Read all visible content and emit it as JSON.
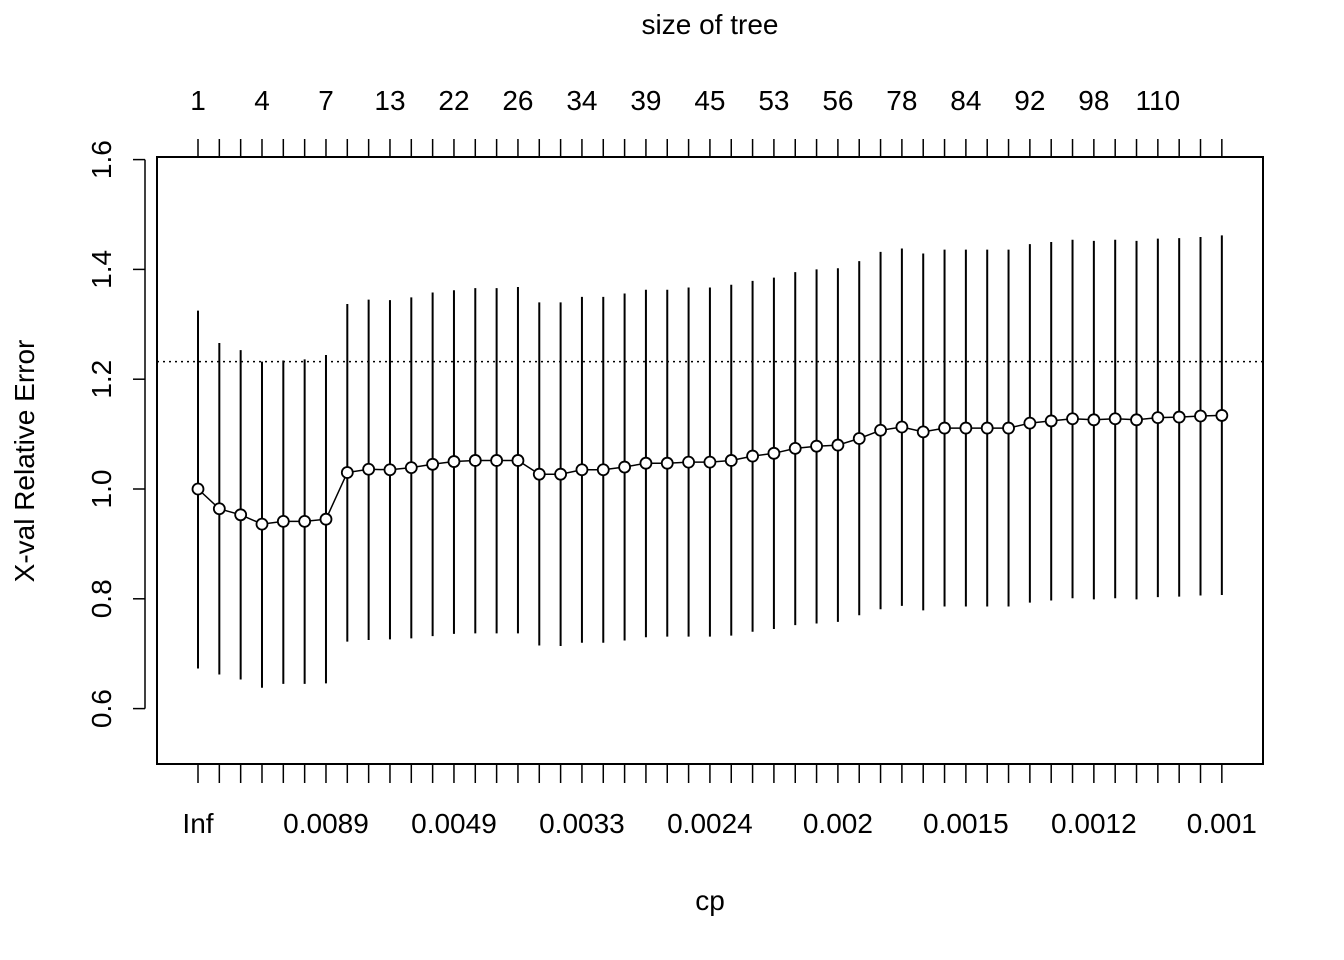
{
  "chart_data": {
    "type": "line",
    "title": "size of tree",
    "xlabel": "cp",
    "ylabel": "X-val Relative Error",
    "ylim": [
      0.5,
      1.6
    ],
    "y_ticks": [
      "0.6",
      "0.8",
      "1.0",
      "1.2",
      "1.4",
      "1.6"
    ],
    "bottom_tick_labels": [
      "Inf",
      "0.0089",
      "0.0049",
      "0.0033",
      "0.0024",
      "0.002",
      "0.0015",
      "0.0012",
      "0.001"
    ],
    "top_tick_labels": [
      "1",
      "4",
      "7",
      "13",
      "22",
      "26",
      "34",
      "39",
      "45",
      "53",
      "56",
      "78",
      "84",
      "92",
      "98",
      "110"
    ],
    "reference_line": 1.232,
    "grid": false,
    "series": [
      {
        "values": [
          1.0,
          0.964,
          0.953,
          0.936,
          0.941,
          0.941,
          0.945,
          1.03,
          1.036,
          1.035,
          1.039,
          1.045,
          1.05,
          1.052,
          1.052,
          1.052,
          1.027,
          1.027,
          1.035,
          1.035,
          1.04,
          1.047,
          1.047,
          1.049,
          1.049,
          1.052,
          1.06,
          1.065,
          1.074,
          1.078,
          1.08,
          1.092,
          1.107,
          1.113,
          1.104,
          1.111,
          1.111,
          1.111,
          1.111,
          1.12,
          1.124,
          1.128,
          1.126,
          1.128,
          1.126,
          1.13,
          1.131,
          1.133,
          1.134
        ],
        "upper": [
          1.325,
          1.266,
          1.253,
          1.232,
          1.234,
          1.236,
          1.244,
          1.337,
          1.345,
          1.344,
          1.349,
          1.358,
          1.362,
          1.366,
          1.366,
          1.368,
          1.34,
          1.34,
          1.35,
          1.35,
          1.356,
          1.363,
          1.363,
          1.367,
          1.367,
          1.372,
          1.379,
          1.385,
          1.395,
          1.4,
          1.402,
          1.415,
          1.432,
          1.438,
          1.429,
          1.436,
          1.436,
          1.436,
          1.436,
          1.446,
          1.45,
          1.454,
          1.452,
          1.454,
          1.452,
          1.456,
          1.457,
          1.459,
          1.462
        ],
        "lower": [
          0.673,
          0.662,
          0.653,
          0.638,
          0.645,
          0.645,
          0.646,
          0.722,
          0.725,
          0.726,
          0.728,
          0.732,
          0.736,
          0.737,
          0.737,
          0.737,
          0.715,
          0.714,
          0.72,
          0.72,
          0.724,
          0.73,
          0.731,
          0.731,
          0.731,
          0.733,
          0.74,
          0.745,
          0.752,
          0.755,
          0.758,
          0.77,
          0.781,
          0.787,
          0.779,
          0.786,
          0.786,
          0.786,
          0.786,
          0.793,
          0.797,
          0.801,
          0.799,
          0.801,
          0.799,
          0.803,
          0.804,
          0.806,
          0.807
        ]
      }
    ]
  }
}
